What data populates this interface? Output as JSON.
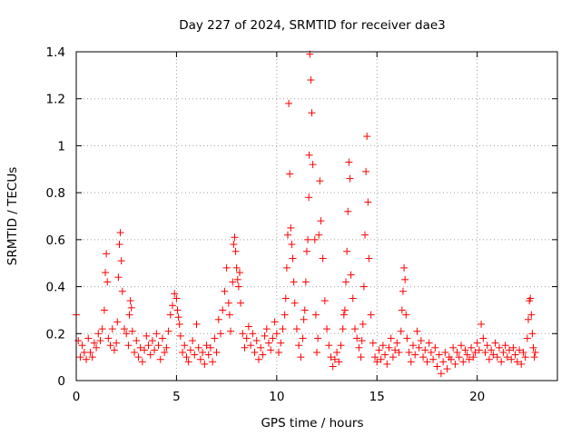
{
  "chart_data": {
    "type": "scatter",
    "title": "Day 227 of 2024, SRMTID for receiver dae3",
    "xlabel": "GPS time / hours",
    "ylabel": "SRMTID / TECUs",
    "xlim": [
      0,
      24
    ],
    "ylim": [
      0,
      1.4
    ],
    "xticks": [
      0,
      5,
      10,
      15,
      20
    ],
    "xtick_labels": [
      "0",
      "5",
      "10",
      "15",
      "20"
    ],
    "yticks": [
      0,
      0.2,
      0.4,
      0.6,
      0.8,
      1,
      1.2,
      1.4
    ],
    "ytick_labels": [
      "0",
      "0.2",
      "0.4",
      "0.6",
      "0.8",
      "1",
      "1.2",
      "1.4"
    ],
    "grid": true,
    "marker": "+",
    "series": [
      {
        "name": "SRMTID",
        "color": "#ff0000",
        "x": [
          0.0,
          0.1,
          0.2,
          0.3,
          0.4,
          0.5,
          0.6,
          0.7,
          0.8,
          0.9,
          1.0,
          1.1,
          1.2,
          1.3,
          1.4,
          1.45,
          1.5,
          1.55,
          1.6,
          1.7,
          1.8,
          1.9,
          2.0,
          2.05,
          2.1,
          2.15,
          2.2,
          2.25,
          2.3,
          2.4,
          2.5,
          2.6,
          2.65,
          2.7,
          2.75,
          2.8,
          2.9,
          3.0,
          3.1,
          3.2,
          3.3,
          3.4,
          3.5,
          3.6,
          3.7,
          3.8,
          3.9,
          4.0,
          4.1,
          4.2,
          4.3,
          4.4,
          4.5,
          4.6,
          4.7,
          4.8,
          4.9,
          5.0,
          5.05,
          5.1,
          5.15,
          5.2,
          5.3,
          5.4,
          5.5,
          5.6,
          5.7,
          5.8,
          5.9,
          6.0,
          6.1,
          6.2,
          6.3,
          6.4,
          6.5,
          6.6,
          6.7,
          6.8,
          6.9,
          7.0,
          7.1,
          7.2,
          7.3,
          7.4,
          7.5,
          7.6,
          7.65,
          7.7,
          7.8,
          7.85,
          7.9,
          7.95,
          8.0,
          8.05,
          8.1,
          8.15,
          8.2,
          8.3,
          8.4,
          8.5,
          8.6,
          8.7,
          8.8,
          8.9,
          9.0,
          9.1,
          9.2,
          9.3,
          9.4,
          9.5,
          9.6,
          9.7,
          9.8,
          9.9,
          10.0,
          10.1,
          10.2,
          10.3,
          10.4,
          10.45,
          10.5,
          10.55,
          10.6,
          10.65,
          10.7,
          10.75,
          10.8,
          10.85,
          10.9,
          11.0,
          11.1,
          11.2,
          11.3,
          11.35,
          11.4,
          11.45,
          11.5,
          11.55,
          11.6,
          11.62,
          11.65,
          11.7,
          11.75,
          11.8,
          11.9,
          11.95,
          12.0,
          12.05,
          12.1,
          12.15,
          12.2,
          12.3,
          12.4,
          12.5,
          12.6,
          12.7,
          12.8,
          12.9,
          13.0,
          13.1,
          13.2,
          13.3,
          13.35,
          13.4,
          13.45,
          13.5,
          13.55,
          13.6,
          13.65,
          13.7,
          13.8,
          13.9,
          14.0,
          14.1,
          14.2,
          14.25,
          14.3,
          14.35,
          14.4,
          14.45,
          14.5,
          14.55,
          14.6,
          14.7,
          14.8,
          14.9,
          15.0,
          15.1,
          15.2,
          15.3,
          15.4,
          15.5,
          15.6,
          15.7,
          15.8,
          15.9,
          16.0,
          16.1,
          16.2,
          16.25,
          16.3,
          16.35,
          16.4,
          16.45,
          16.5,
          16.6,
          16.7,
          16.8,
          16.9,
          17.0,
          17.1,
          17.2,
          17.3,
          17.4,
          17.5,
          17.6,
          17.7,
          17.8,
          17.9,
          18.0,
          18.1,
          18.2,
          18.3,
          18.4,
          18.5,
          18.6,
          18.7,
          18.8,
          18.9,
          19.0,
          19.1,
          19.2,
          19.3,
          19.4,
          19.5,
          19.6,
          19.7,
          19.8,
          19.9,
          20.0,
          20.1,
          20.2,
          20.3,
          20.4,
          20.5,
          20.6,
          20.7,
          20.8,
          20.9,
          21.0,
          21.1,
          21.2,
          21.3,
          21.4,
          21.5,
          21.6,
          21.7,
          21.8,
          21.9,
          22.0,
          22.1,
          22.2,
          22.3,
          22.4,
          22.5,
          22.55,
          22.6,
          22.65,
          22.7,
          22.75,
          22.8,
          22.85,
          22.9
        ],
        "y": [
          0.28,
          0.17,
          0.1,
          0.15,
          0.12,
          0.09,
          0.18,
          0.12,
          0.1,
          0.16,
          0.14,
          0.2,
          0.17,
          0.22,
          0.3,
          0.46,
          0.54,
          0.42,
          0.18,
          0.15,
          0.22,
          0.13,
          0.16,
          0.25,
          0.44,
          0.58,
          0.63,
          0.51,
          0.38,
          0.22,
          0.2,
          0.15,
          0.28,
          0.34,
          0.31,
          0.21,
          0.12,
          0.17,
          0.1,
          0.14,
          0.08,
          0.13,
          0.19,
          0.15,
          0.11,
          0.17,
          0.13,
          0.2,
          0.15,
          0.09,
          0.18,
          0.12,
          0.14,
          0.21,
          0.28,
          0.32,
          0.37,
          0.35,
          0.3,
          0.27,
          0.24,
          0.19,
          0.12,
          0.15,
          0.1,
          0.08,
          0.13,
          0.17,
          0.11,
          0.24,
          0.14,
          0.09,
          0.12,
          0.07,
          0.15,
          0.11,
          0.14,
          0.08,
          0.18,
          0.12,
          0.26,
          0.2,
          0.3,
          0.38,
          0.48,
          0.33,
          0.28,
          0.21,
          0.42,
          0.58,
          0.61,
          0.55,
          0.48,
          0.43,
          0.4,
          0.46,
          0.33,
          0.2,
          0.14,
          0.18,
          0.23,
          0.15,
          0.2,
          0.12,
          0.17,
          0.09,
          0.14,
          0.11,
          0.19,
          0.22,
          0.16,
          0.13,
          0.18,
          0.25,
          0.2,
          0.12,
          0.16,
          0.22,
          0.28,
          0.35,
          0.48,
          0.62,
          1.18,
          0.88,
          0.65,
          0.58,
          0.52,
          0.42,
          0.33,
          0.22,
          0.15,
          0.1,
          0.18,
          0.26,
          0.3,
          0.42,
          0.55,
          0.6,
          0.78,
          0.96,
          1.39,
          1.28,
          1.14,
          0.92,
          0.6,
          0.28,
          0.12,
          0.18,
          0.62,
          0.85,
          0.68,
          0.52,
          0.34,
          0.22,
          0.15,
          0.1,
          0.06,
          0.09,
          0.12,
          0.08,
          0.15,
          0.22,
          0.28,
          0.3,
          0.42,
          0.55,
          0.72,
          0.93,
          0.86,
          0.45,
          0.35,
          0.22,
          0.18,
          0.14,
          0.1,
          0.17,
          0.24,
          0.4,
          0.62,
          0.89,
          1.04,
          0.76,
          0.52,
          0.28,
          0.16,
          0.1,
          0.08,
          0.13,
          0.09,
          0.15,
          0.11,
          0.07,
          0.14,
          0.18,
          0.1,
          0.13,
          0.16,
          0.12,
          0.21,
          0.3,
          0.38,
          0.48,
          0.43,
          0.28,
          0.18,
          0.12,
          0.08,
          0.15,
          0.11,
          0.21,
          0.14,
          0.17,
          0.1,
          0.13,
          0.08,
          0.16,
          0.12,
          0.09,
          0.14,
          0.06,
          0.11,
          0.03,
          0.08,
          0.12,
          0.05,
          0.1,
          0.09,
          0.14,
          0.07,
          0.12,
          0.1,
          0.15,
          0.08,
          0.13,
          0.11,
          0.09,
          0.14,
          0.1,
          0.12,
          0.16,
          0.13,
          0.24,
          0.18,
          0.12,
          0.15,
          0.09,
          0.13,
          0.11,
          0.16,
          0.1,
          0.14,
          0.08,
          0.12,
          0.15,
          0.1,
          0.13,
          0.09,
          0.14,
          0.11,
          0.08,
          0.13,
          0.07,
          0.12,
          0.1,
          0.18,
          0.26,
          0.34,
          0.35,
          0.28,
          0.2,
          0.14,
          0.1,
          0.12
        ]
      }
    ]
  }
}
